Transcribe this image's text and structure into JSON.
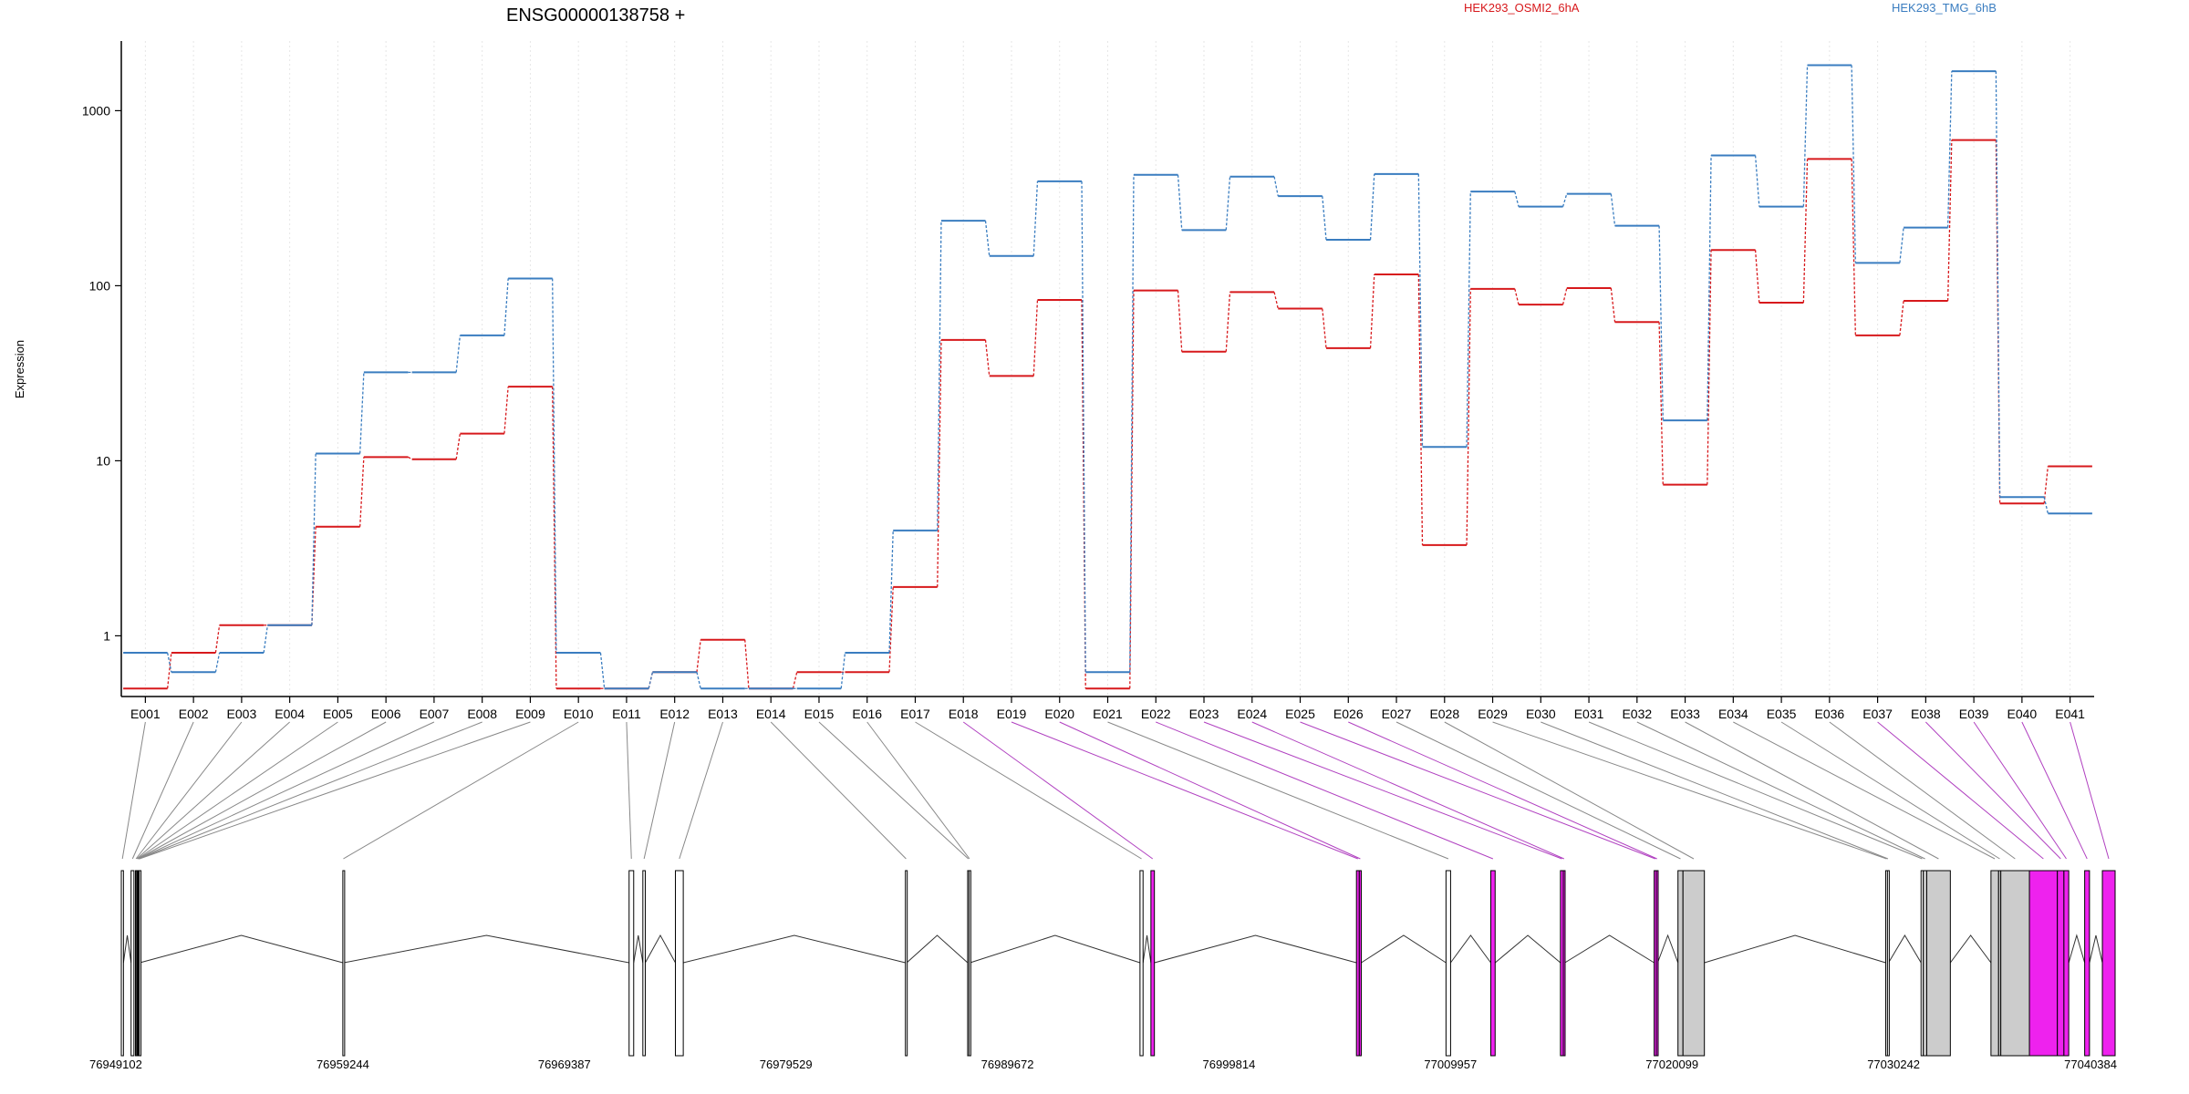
{
  "chart_data": {
    "type": "line",
    "title": "ENSG00000138758 +",
    "ylabel": "Expression",
    "xlabel": "",
    "yscale": "log",
    "ylim": [
      0.45,
      2500
    ],
    "yticks": [
      1,
      10,
      100,
      1000
    ],
    "ytick_labels": [
      "1",
      "10",
      "100",
      "1000"
    ],
    "grid": "vertical dotted lines at exon centers",
    "legend": "top-right, two colored text labels",
    "categories": [
      "E001",
      "E002",
      "E003",
      "E004",
      "E005",
      "E006",
      "E007",
      "E008",
      "E009",
      "E010",
      "E011",
      "E012",
      "E013",
      "E014",
      "E015",
      "E016",
      "E017",
      "E018",
      "E019",
      "E020",
      "E021",
      "E022",
      "E023",
      "E024",
      "E025",
      "E026",
      "E027",
      "E028",
      "E029",
      "E030",
      "E031",
      "E032",
      "E033",
      "E034",
      "E035",
      "E036",
      "E037",
      "E038",
      "E039",
      "E040",
      "E041"
    ],
    "series": [
      {
        "name": "HEK293_OSMI2_6hA",
        "color": "#d7191c",
        "values": [
          0.5,
          0.8,
          1.15,
          1.15,
          4.2,
          10.5,
          10.2,
          14.3,
          26.5,
          0.5,
          0.5,
          0.62,
          0.95,
          0.5,
          0.62,
          0.62,
          1.9,
          49,
          30.5,
          83,
          0.5,
          94,
          42,
          92,
          74,
          44,
          116,
          3.3,
          96,
          78,
          97,
          62,
          7.3,
          160,
          80,
          530,
          52,
          82,
          680,
          5.7,
          9.3
        ]
      },
      {
        "name": "HEK293_TMG_6hB",
        "color": "#3a7dc0",
        "values": [
          0.8,
          0.62,
          0.8,
          1.15,
          11,
          32,
          32,
          52,
          110,
          0.8,
          0.5,
          0.62,
          0.5,
          0.5,
          0.5,
          0.8,
          4.0,
          235,
          148,
          395,
          0.62,
          430,
          208,
          420,
          325,
          183,
          435,
          12,
          345,
          283,
          335,
          220,
          17,
          555,
          283,
          1820,
          135,
          215,
          1680,
          6.2,
          5.0
        ]
      }
    ],
    "gene_model": {
      "x_tick_labels": [
        "76949102",
        "76959244",
        "76969387",
        "76979529",
        "76989672",
        "76999814",
        "77009957",
        "77020099",
        "77030242",
        "77040384"
      ],
      "xlim": [
        76949102,
        77040384
      ],
      "exon_highlight_colors": {
        "plain": "#ffffff",
        "gray": "#cccccc",
        "differential": "#ee22ee"
      },
      "exons": [
        {
          "id": "E001",
          "start": 76949102,
          "end": 76949200,
          "fill": "plain"
        },
        {
          "id": "E002",
          "start": 76949550,
          "end": 76949680,
          "fill": "plain"
        },
        {
          "id": "E003",
          "start": 76949750,
          "end": 76949800,
          "fill": "plain"
        },
        {
          "id": "E004",
          "start": 76949800,
          "end": 76949830,
          "fill": "plain"
        },
        {
          "id": "E005",
          "start": 76949830,
          "end": 76949860,
          "fill": "plain"
        },
        {
          "id": "E006",
          "start": 76949860,
          "end": 76949880,
          "fill": "plain"
        },
        {
          "id": "E007",
          "start": 76949880,
          "end": 76949900,
          "fill": "plain"
        },
        {
          "id": "E008",
          "start": 76949900,
          "end": 76949920,
          "fill": "plain"
        },
        {
          "id": "E009",
          "start": 76949920,
          "end": 76949950,
          "fill": "plain"
        },
        {
          "id": "E010",
          "start": 76959244,
          "end": 76959290,
          "fill": "plain"
        },
        {
          "id": "E011",
          "start": 76972350,
          "end": 76972560,
          "fill": "plain"
        },
        {
          "id": "E012",
          "start": 76972980,
          "end": 76973090,
          "fill": "plain"
        },
        {
          "id": "E013",
          "start": 76974470,
          "end": 76974830,
          "fill": "plain"
        },
        {
          "id": "E014",
          "start": 76985000,
          "end": 76985060,
          "fill": "plain"
        },
        {
          "id": "E015",
          "start": 76987850,
          "end": 76987910,
          "fill": "plain"
        },
        {
          "id": "E016",
          "start": 76987910,
          "end": 76987960,
          "fill": "plain"
        },
        {
          "id": "E017",
          "start": 76995740,
          "end": 76995880,
          "fill": "plain"
        },
        {
          "id": "E018",
          "start": 76996240,
          "end": 76996400,
          "fill": "differential"
        },
        {
          "id": "E019",
          "start": 77005650,
          "end": 77005780,
          "fill": "differential"
        },
        {
          "id": "E020",
          "start": 77005780,
          "end": 77005870,
          "fill": "differential"
        },
        {
          "id": "E021",
          "start": 77009750,
          "end": 77009960,
          "fill": "plain"
        },
        {
          "id": "E022",
          "start": 77011800,
          "end": 77012000,
          "fill": "differential"
        },
        {
          "id": "E023",
          "start": 77014990,
          "end": 77015120,
          "fill": "differential"
        },
        {
          "id": "E024",
          "start": 77015120,
          "end": 77015190,
          "fill": "differential"
        },
        {
          "id": "E025",
          "start": 77019280,
          "end": 77019380,
          "fill": "differential"
        },
        {
          "id": "E026",
          "start": 77019380,
          "end": 77019440,
          "fill": "differential"
        },
        {
          "id": "E027",
          "start": 77020370,
          "end": 77020600,
          "fill": "gray"
        },
        {
          "id": "E028",
          "start": 77020600,
          "end": 77021580,
          "fill": "gray"
        },
        {
          "id": "E029",
          "start": 77029880,
          "end": 77029960,
          "fill": "plain"
        },
        {
          "id": "E030",
          "start": 77029960,
          "end": 77030010,
          "fill": "plain"
        },
        {
          "id": "E031",
          "start": 77031500,
          "end": 77031600,
          "fill": "plain"
        },
        {
          "id": "E032",
          "start": 77031600,
          "end": 77031760,
          "fill": "gray"
        },
        {
          "id": "E033",
          "start": 77031760,
          "end": 77032840,
          "fill": "gray"
        },
        {
          "id": "E034",
          "start": 77034700,
          "end": 77035050,
          "fill": "gray"
        },
        {
          "id": "E035",
          "start": 77035050,
          "end": 77035150,
          "fill": "gray"
        },
        {
          "id": "E036",
          "start": 77035150,
          "end": 77036460,
          "fill": "gray"
        },
        {
          "id": "E037",
          "start": 77036460,
          "end": 77037740,
          "fill": "differential"
        },
        {
          "id": "E038",
          "start": 77037740,
          "end": 77038040,
          "fill": "differential"
        },
        {
          "id": "E039",
          "start": 77038040,
          "end": 77038260,
          "fill": "differential"
        },
        {
          "id": "E040",
          "start": 77038990,
          "end": 77039210,
          "fill": "differential"
        },
        {
          "id": "E041",
          "start": 77039800,
          "end": 77040384,
          "fill": "differential"
        }
      ]
    }
  }
}
